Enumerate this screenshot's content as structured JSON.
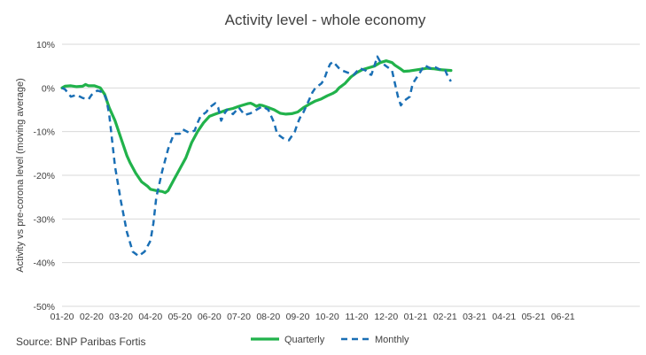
{
  "chart_data": {
    "type": "line",
    "title": "Activity level - whole economy",
    "ylabel": "Activity vs pre-corona level (moving average)",
    "xlabel": "",
    "ylim": [
      -50,
      10
    ],
    "y_ticks": [
      "10%",
      "0%",
      "-10%",
      "-20%",
      "-30%",
      "-40%",
      "-50%"
    ],
    "y_tick_values": [
      10,
      0,
      -10,
      -20,
      -30,
      -40,
      -50
    ],
    "x_tick_labels": [
      "01-20",
      "02-20",
      "03-20",
      "04-20",
      "05-20",
      "06-20",
      "07-20",
      "08-20",
      "09-20",
      "10-20",
      "11-20",
      "12-20",
      "01-21",
      "02-21",
      "03-21",
      "04-21",
      "05-21",
      "06-21"
    ],
    "grid": "horizontal",
    "legend_position": "bottom",
    "source": "Source: BNP Paribas Fortis",
    "series": [
      {
        "name": "Quarterly",
        "color": "#21b24b",
        "style": "solid",
        "points": [
          [
            0,
            0
          ],
          [
            0.1,
            0.4
          ],
          [
            0.3,
            0.5
          ],
          [
            0.5,
            0.3
          ],
          [
            0.7,
            0.4
          ],
          [
            0.8,
            0.8
          ],
          [
            0.9,
            0.5
          ],
          [
            1.1,
            0.5
          ],
          [
            1.3,
            0
          ],
          [
            1.45,
            -1.5
          ],
          [
            1.6,
            -4.5
          ],
          [
            1.8,
            -7.5
          ],
          [
            2,
            -11.5
          ],
          [
            2.2,
            -15.5
          ],
          [
            2.3,
            -17
          ],
          [
            2.5,
            -19.5
          ],
          [
            2.7,
            -21.5
          ],
          [
            2.9,
            -22.5
          ],
          [
            3.0,
            -23.2
          ],
          [
            3.2,
            -23.5
          ],
          [
            3.4,
            -23.7
          ],
          [
            3.5,
            -24
          ],
          [
            3.6,
            -23.5
          ],
          [
            3.8,
            -21
          ],
          [
            4.0,
            -18.5
          ],
          [
            4.2,
            -16
          ],
          [
            4.4,
            -12.5
          ],
          [
            4.6,
            -10
          ],
          [
            4.8,
            -8
          ],
          [
            5.0,
            -6.5
          ],
          [
            5.2,
            -6
          ],
          [
            5.4,
            -5.5
          ],
          [
            5.6,
            -5
          ],
          [
            5.8,
            -4.7
          ],
          [
            6.0,
            -4.2
          ],
          [
            6.2,
            -3.8
          ],
          [
            6.3,
            -3.6
          ],
          [
            6.4,
            -3.5
          ],
          [
            6.5,
            -3.8
          ],
          [
            6.6,
            -4.2
          ],
          [
            6.7,
            -3.9
          ],
          [
            6.8,
            -4
          ],
          [
            7.0,
            -4.5
          ],
          [
            7.2,
            -5
          ],
          [
            7.4,
            -5.8
          ],
          [
            7.6,
            -6
          ],
          [
            7.8,
            -5.9
          ],
          [
            8.0,
            -5.5
          ],
          [
            8.2,
            -4.5
          ],
          [
            8.4,
            -3.7
          ],
          [
            8.6,
            -3
          ],
          [
            8.8,
            -2.5
          ],
          [
            9.0,
            -1.8
          ],
          [
            9.2,
            -1.2
          ],
          [
            9.3,
            -0.8
          ],
          [
            9.4,
            0
          ],
          [
            9.6,
            1
          ],
          [
            9.8,
            2.5
          ],
          [
            10.0,
            3.5
          ],
          [
            10.2,
            4.2
          ],
          [
            10.4,
            4.6
          ],
          [
            10.6,
            5
          ],
          [
            10.8,
            5.8
          ],
          [
            11.0,
            6.2
          ],
          [
            11.2,
            5.8
          ],
          [
            11.3,
            5.2
          ],
          [
            11.5,
            4.3
          ],
          [
            11.6,
            3.8
          ],
          [
            11.8,
            3.9
          ],
          [
            12.0,
            4.1
          ],
          [
            12.2,
            4.3
          ],
          [
            12.4,
            4.5
          ],
          [
            12.6,
            4.4
          ],
          [
            12.8,
            4.2
          ],
          [
            13.0,
            4.1
          ],
          [
            13.2,
            4
          ]
        ]
      },
      {
        "name": "Monthly",
        "color": "#1a6fb5",
        "style": "dashed",
        "points": [
          [
            0,
            0
          ],
          [
            0.1,
            -0.3
          ],
          [
            0.3,
            -2
          ],
          [
            0.5,
            -1.6
          ],
          [
            0.7,
            -2.3
          ],
          [
            0.9,
            -2.6
          ],
          [
            1.0,
            -1.6
          ],
          [
            1.1,
            -1
          ],
          [
            1.2,
            -0.6
          ],
          [
            1.4,
            -1
          ],
          [
            1.5,
            -2.5
          ],
          [
            1.6,
            -6
          ],
          [
            1.7,
            -12
          ],
          [
            1.8,
            -18
          ],
          [
            2.0,
            -26
          ],
          [
            2.2,
            -33
          ],
          [
            2.4,
            -37.5
          ],
          [
            2.6,
            -38.5
          ],
          [
            2.8,
            -37.5
          ],
          [
            3.0,
            -35
          ],
          [
            3.1,
            -31
          ],
          [
            3.2,
            -25
          ],
          [
            3.4,
            -19
          ],
          [
            3.6,
            -14
          ],
          [
            3.8,
            -10.5
          ],
          [
            4.0,
            -10.5
          ],
          [
            4.1,
            -9.5
          ],
          [
            4.3,
            -10.2
          ],
          [
            4.5,
            -9.8
          ],
          [
            4.6,
            -8
          ],
          [
            4.7,
            -6.5
          ],
          [
            4.9,
            -5.5
          ],
          [
            5.0,
            -4.5
          ],
          [
            5.2,
            -3.5
          ],
          [
            5.3,
            -4.5
          ],
          [
            5.4,
            -7.5
          ],
          [
            5.5,
            -6
          ],
          [
            5.6,
            -5
          ],
          [
            5.8,
            -6
          ],
          [
            6.0,
            -4.5
          ],
          [
            6.2,
            -6.2
          ],
          [
            6.4,
            -5.8
          ],
          [
            6.6,
            -5
          ],
          [
            6.8,
            -4.2
          ],
          [
            7.0,
            -5
          ],
          [
            7.2,
            -8
          ],
          [
            7.3,
            -10.5
          ],
          [
            7.5,
            -11.5
          ],
          [
            7.7,
            -12
          ],
          [
            7.9,
            -10
          ],
          [
            8.0,
            -8
          ],
          [
            8.1,
            -6.5
          ],
          [
            8.2,
            -5.5
          ],
          [
            8.4,
            -2.5
          ],
          [
            8.5,
            -1
          ],
          [
            8.6,
            0
          ],
          [
            8.8,
            1
          ],
          [
            8.9,
            2
          ],
          [
            9.0,
            4
          ],
          [
            9.1,
            5.5
          ],
          [
            9.2,
            6
          ],
          [
            9.4,
            4.5
          ],
          [
            9.5,
            4
          ],
          [
            9.7,
            3.5
          ],
          [
            9.9,
            3
          ],
          [
            10.1,
            4.5
          ],
          [
            10.3,
            4
          ],
          [
            10.4,
            3.2
          ],
          [
            10.5,
            3
          ],
          [
            10.6,
            5
          ],
          [
            10.7,
            7.2
          ],
          [
            10.8,
            6
          ],
          [
            11.0,
            5
          ],
          [
            11.2,
            4
          ],
          [
            11.3,
            1
          ],
          [
            11.4,
            -2
          ],
          [
            11.5,
            -4
          ],
          [
            11.6,
            -3
          ],
          [
            11.8,
            -2
          ],
          [
            11.9,
            1
          ],
          [
            12.1,
            3
          ],
          [
            12.3,
            5.2
          ],
          [
            12.5,
            4.5
          ],
          [
            12.6,
            5
          ],
          [
            12.8,
            4.3
          ],
          [
            13.0,
            4.1
          ],
          [
            13.1,
            2.5
          ],
          [
            13.2,
            1.5
          ]
        ]
      }
    ]
  }
}
